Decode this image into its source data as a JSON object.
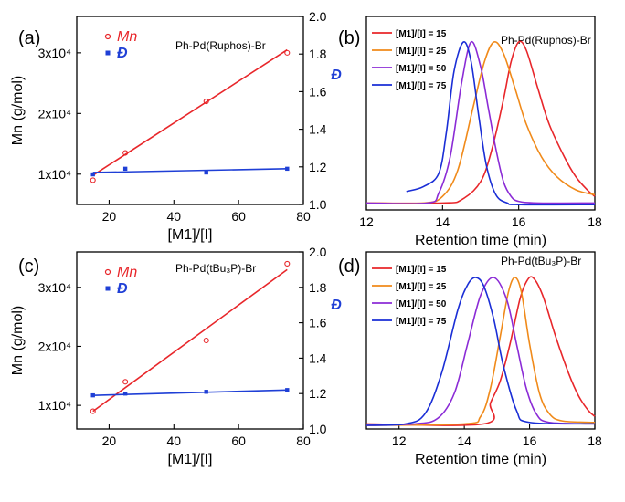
{
  "chart_data": [
    {
      "id": "a",
      "type": "scatter",
      "panel_label": "(a)",
      "annotation": "Ph-Pd(Ruphos)-Br",
      "xlabel": "[M1]/[I]",
      "ylabel_left": "Mn (g/mol)",
      "ylabel_right": "Đ",
      "xlim": [
        10,
        80
      ],
      "ylim_left": [
        5000,
        36000
      ],
      "ylim_right": [
        1.0,
        2.0
      ],
      "x_ticks": [
        "20",
        "40",
        "60",
        "80"
      ],
      "yleft_ticks": [
        "1x10⁴",
        "2x10⁴",
        "3x10⁴"
      ],
      "yright_ticks": [
        "1.0",
        "1.2",
        "1.4",
        "1.6",
        "1.8",
        "2.0"
      ],
      "legend": [
        "Mn",
        "Đ"
      ],
      "colors": {
        "mn": "#e8262a",
        "d": "#1f3fd6"
      },
      "mn_points": {
        "x": [
          15,
          25,
          50,
          75
        ],
        "y": [
          9000,
          13500,
          22000,
          30000
        ]
      },
      "mn_fit": {
        "x": [
          15,
          75
        ],
        "y": [
          9800,
          30500
        ]
      },
      "d_points": {
        "x": [
          15,
          25,
          50,
          75
        ],
        "y": [
          1.16,
          1.19,
          1.17,
          1.19
        ]
      },
      "d_fit": {
        "x": [
          15,
          75
        ],
        "y": [
          1.17,
          1.19
        ]
      }
    },
    {
      "id": "b",
      "type": "line",
      "panel_label": "(b)",
      "annotation": "Ph-Pd(Ruphos)-Br",
      "xlabel": "Retention time (min)",
      "xlim": [
        12,
        18
      ],
      "ylim": [
        0,
        1
      ],
      "x_ticks": [
        "12",
        "14",
        "16",
        "18"
      ],
      "series": [
        {
          "name": "[M1]/[I] = 15",
          "color": "#e8262a",
          "x": [
            12.0,
            14.0,
            14.5,
            15.0,
            15.3,
            15.6,
            15.8,
            16.0,
            16.2,
            16.5,
            16.8,
            17.2,
            17.5,
            17.8,
            18.0
          ],
          "y": [
            0.02,
            0.02,
            0.04,
            0.15,
            0.35,
            0.65,
            0.88,
            1.0,
            0.95,
            0.72,
            0.5,
            0.3,
            0.18,
            0.1,
            0.06
          ]
        },
        {
          "name": "[M1]/[I] = 25",
          "color": "#f08a1a",
          "x": [
            12.0,
            13.5,
            14.0,
            14.4,
            14.8,
            15.1,
            15.35,
            15.6,
            15.9,
            16.2,
            16.6,
            17.0,
            17.5,
            18.0
          ],
          "y": [
            0.02,
            0.02,
            0.06,
            0.22,
            0.6,
            0.88,
            1.0,
            0.93,
            0.72,
            0.5,
            0.3,
            0.18,
            0.1,
            0.07
          ]
        },
        {
          "name": "[M1]/[I] = 50",
          "color": "#8b2bd6",
          "x": [
            12.0,
            13.6,
            13.9,
            14.2,
            14.5,
            14.75,
            15.0,
            15.2,
            15.4,
            15.6,
            15.8,
            16.0,
            16.5,
            18.0
          ],
          "y": [
            0.02,
            0.02,
            0.08,
            0.3,
            0.75,
            1.0,
            0.85,
            0.6,
            0.35,
            0.15,
            0.06,
            0.03,
            0.02,
            0.02
          ]
        },
        {
          "name": "[M1]/[I] = 75",
          "color": "#1a2ed6",
          "x": [
            13.05,
            13.5,
            13.9,
            14.1,
            14.3,
            14.55,
            14.75,
            14.95,
            15.15,
            15.4,
            15.7,
            16.0,
            18.0
          ],
          "y": [
            0.09,
            0.12,
            0.2,
            0.45,
            0.82,
            1.0,
            0.88,
            0.55,
            0.25,
            0.07,
            0.02,
            0.01,
            0.01
          ]
        }
      ]
    },
    {
      "id": "c",
      "type": "scatter",
      "panel_label": "(c)",
      "annotation": "Ph-Pd(tBu₃P)-Br",
      "xlabel": "[M1]/[I]",
      "ylabel_left": "Mn (g/mol)",
      "ylabel_right": "Đ",
      "xlim": [
        10,
        80
      ],
      "ylim_left": [
        6000,
        36000
      ],
      "ylim_right": [
        1.0,
        2.0
      ],
      "x_ticks": [
        "20",
        "40",
        "60",
        "80"
      ],
      "yleft_ticks": [
        "1x10⁴",
        "2x10⁴",
        "3x10⁴"
      ],
      "yright_ticks": [
        "1.0",
        "1.2",
        "1.4",
        "1.6",
        "1.8",
        "2.0"
      ],
      "legend": [
        "Mn",
        "Đ"
      ],
      "colors": {
        "mn": "#e8262a",
        "d": "#1f3fd6"
      },
      "mn_points": {
        "x": [
          15,
          25,
          50,
          75
        ],
        "y": [
          9000,
          14000,
          21000,
          34000
        ]
      },
      "mn_fit": {
        "x": [
          15,
          75
        ],
        "y": [
          9000,
          33000
        ]
      },
      "d_points": {
        "x": [
          15,
          25,
          50,
          75
        ],
        "y": [
          1.19,
          1.2,
          1.21,
          1.22
        ]
      },
      "d_fit": {
        "x": [
          15,
          75
        ],
        "y": [
          1.19,
          1.22
        ]
      }
    },
    {
      "id": "d",
      "type": "line",
      "panel_label": "(d)",
      "annotation": "Ph-Pd(tBu₃P)-Br",
      "xlabel": "Retention time (min)",
      "xlim": [
        11,
        18
      ],
      "ylim": [
        0,
        1
      ],
      "x_ticks": [
        "12",
        "14",
        "16",
        "18"
      ],
      "series": [
        {
          "name": "[M1]/[I] = 15",
          "color": "#e8262a",
          "x": [
            11.0,
            14.6,
            14.8,
            15.1,
            15.4,
            15.7,
            15.9,
            16.1,
            16.4,
            16.8,
            17.2,
            17.5,
            17.8,
            18.0
          ],
          "y": [
            0.01,
            0.01,
            0.15,
            0.3,
            0.55,
            0.85,
            0.97,
            1.0,
            0.88,
            0.6,
            0.35,
            0.2,
            0.1,
            0.06
          ]
        },
        {
          "name": "[M1]/[I] = 25",
          "color": "#f08a1a",
          "x": [
            11.0,
            14.0,
            14.5,
            14.8,
            15.1,
            15.35,
            15.55,
            15.75,
            16.0,
            16.3,
            16.6,
            17.0,
            18.0
          ],
          "y": [
            0.0,
            0.01,
            0.06,
            0.25,
            0.6,
            0.9,
            1.0,
            0.9,
            0.55,
            0.22,
            0.08,
            0.03,
            0.02
          ]
        },
        {
          "name": "[M1]/[I] = 50",
          "color": "#8b2bd6",
          "x": [
            11.0,
            12.5,
            13.2,
            13.7,
            14.1,
            14.5,
            14.9,
            15.3,
            15.6,
            15.9,
            16.2,
            16.6,
            18.0
          ],
          "y": [
            0.0,
            0.01,
            0.05,
            0.22,
            0.55,
            0.88,
            1.0,
            0.85,
            0.55,
            0.25,
            0.08,
            0.02,
            0.01
          ]
        },
        {
          "name": "[M1]/[I] = 75",
          "color": "#1a2ed6",
          "x": [
            11.0,
            12.2,
            12.8,
            13.3,
            13.8,
            14.1,
            14.35,
            14.6,
            14.9,
            15.2,
            15.6,
            16.0,
            18.0
          ],
          "y": [
            0.0,
            0.01,
            0.08,
            0.35,
            0.78,
            0.95,
            1.0,
            0.94,
            0.72,
            0.4,
            0.1,
            0.02,
            0.01
          ]
        }
      ]
    }
  ]
}
